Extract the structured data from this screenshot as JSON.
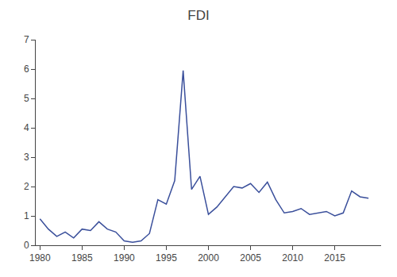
{
  "chart_data": {
    "type": "line",
    "title": "FDI",
    "x": [
      1980,
      1981,
      1982,
      1983,
      1984,
      1985,
      1986,
      1987,
      1988,
      1989,
      1990,
      1991,
      1992,
      1993,
      1994,
      1995,
      1996,
      1997,
      1998,
      1999,
      2000,
      2001,
      2002,
      2003,
      2004,
      2005,
      2006,
      2007,
      2008,
      2009,
      2010,
      2011,
      2012,
      2013,
      2014,
      2015,
      2016,
      2017,
      2018,
      2019
    ],
    "values": [
      0.9,
      0.55,
      0.3,
      0.45,
      0.25,
      0.55,
      0.5,
      0.8,
      0.55,
      0.45,
      0.15,
      0.1,
      0.15,
      0.4,
      1.55,
      1.4,
      2.2,
      5.95,
      1.9,
      2.35,
      1.05,
      1.3,
      1.65,
      2.0,
      1.95,
      2.1,
      1.8,
      2.15,
      1.55,
      1.1,
      1.15,
      1.25,
      1.05,
      1.1,
      1.15,
      1.0,
      1.1,
      1.85,
      1.65,
      1.6
    ],
    "color": "#3a4f9b",
    "xlim": [
      1979.5,
      2020.5
    ],
    "xticks": [
      1980,
      1985,
      1990,
      1995,
      2000,
      2005,
      2010,
      2015
    ],
    "ylim": [
      0,
      7
    ],
    "yticks": [
      0,
      1,
      2,
      3,
      4,
      5,
      6,
      7
    ],
    "grid": false
  }
}
